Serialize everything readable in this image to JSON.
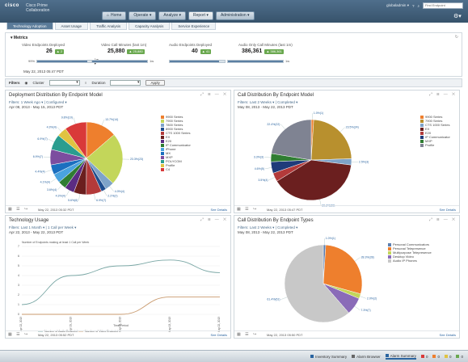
{
  "header": {
    "brand": "cisco",
    "product_line1": "Cisco Prime",
    "product_line2": "Collaboration",
    "nav": [
      {
        "label": "Home",
        "icon": "home-icon"
      },
      {
        "label": "Operate ▾"
      },
      {
        "label": "Analyze ▾"
      },
      {
        "label": "Report ▾",
        "active": true
      },
      {
        "label": "Administration ▾"
      }
    ],
    "user": "globaladmin ▾",
    "help": "?",
    "search_placeholder": "Find Endpoint"
  },
  "subtabs": [
    {
      "label": "Technology Adoption",
      "active": true
    },
    {
      "label": "Asset Usage"
    },
    {
      "label": "Traffic Analysis"
    },
    {
      "label": "Capacity Analysis"
    },
    {
      "label": "Service Experience"
    }
  ],
  "metrics": {
    "title": "Metrics",
    "date": "May 22, 2013 05:47 PDT",
    "items": [
      {
        "label": "Video Endpoints Deployed",
        "value": "26",
        "badge": "▲ 2",
        "pct": "99%",
        "fill": 0.92
      },
      {
        "label": "Video Call Minutes (last 1m)",
        "value": "25,880",
        "badge": "▲ 25,880",
        "pct": "1w",
        "fill": 1.0
      },
      {
        "label": "Audio Endpoints Deployed",
        "value": "40",
        "badge": "▲ 41",
        "pct": "1w",
        "fill": 0.9
      },
      {
        "label": "Audio Only Call Minutes (last 1m)",
        "value": "386,361",
        "badge": "▲ 386,361",
        "pct": "1w",
        "fill": 1.0
      }
    ]
  },
  "filters": {
    "title": "Filters",
    "cluster_label": "Cluster",
    "duration_label": "Duration",
    "apply": "Apply"
  },
  "panels": {
    "deployment": {
      "title": "Deployment Distribution By Endpoint Model",
      "filter": "Filters: 1 Week Ago ▾ | Configured ▾",
      "dates": "Apr 08, 2013 - May 15, 2013 PDT",
      "foot_date": "May 22, 2013 05:32 PDT",
      "see_details": "See Details"
    },
    "call": {
      "title": "Call Distribution By Endpoint Model",
      "filter": "Filters: Last 2 Weeks ▾ | Completed ▾",
      "dates": "May 08, 2013 - May 22, 2013 PDT",
      "foot_date": "May 22, 2013 05:47 PDT",
      "see_details": "See Details"
    },
    "usage": {
      "title": "Technology Usage",
      "filter": "Filters: Last 1 Month ▾ | 1 Call per Week ▾",
      "dates": "Apr 22, 2013 - May 22, 2013 PDT",
      "foot_date": "May 22, 2013 05:52 PDT",
      "see_details": "See Details"
    },
    "types": {
      "title": "Call Distribution By Endpoint Types",
      "filter": "Filters: Last 2 Weeks ▾ | Completed ▾",
      "dates": "May 08, 2013 - May 22, 2013 PDT",
      "foot_date": "May 22, 2013 05:50 PDT",
      "see_details": "See Details"
    }
  },
  "chart_data": [
    {
      "type": "pie",
      "title": "Deployment Distribution By Endpoint Model",
      "categories": [
        "9900 Series",
        "7900 Series",
        "7800 Series",
        "8900 Series",
        "CTS 1000 Series",
        "EX",
        "E20",
        "IP Communicator",
        "iPhone",
        "MX",
        "MXP",
        "POLYCOM",
        "Profile",
        "C4"
      ],
      "values": [
        13.7,
        23.3,
        4.0,
        2.2,
        6.9,
        5.6,
        4.3,
        3.6,
        4.1,
        4.4,
        6.9,
        6.9,
        4.3,
        9.8
      ],
      "colors": [
        "#ee7f2d",
        "#c3d65a",
        "#7ea3c9",
        "#1f4e8f",
        "#b33a3a",
        "#6b1f1f",
        "#5b2c83",
        "#2f7d32",
        "#4aa3df",
        "#1b6fbf",
        "#7c4d9f",
        "#2a9d8f",
        "#e0c341",
        "#d93939"
      ]
    },
    {
      "type": "pie",
      "title": "Call Distribution By Endpoint Model",
      "categories": [
        "9900 Series",
        "7900 Series",
        "CTS 1000 Series",
        "EX",
        "E20",
        "IP Communicator",
        "MXP",
        "Profile"
      ],
      "values": [
        1.0,
        23.5,
        2.5,
        39.2,
        3.5,
        4.6,
        3.3,
        22.4
      ],
      "colors": [
        "#ee7f2d",
        "#b8902e",
        "#7ea3c9",
        "#6b1f1f",
        "#b33a3a",
        "#1f3b7a",
        "#2f7d32",
        "#7f8392"
      ]
    },
    {
      "type": "line",
      "title": "Technology Usage",
      "ylabel": "Number of Endpoints making at least 1 Call per Week",
      "xlabel": "Time Period",
      "x": [
        "Apr 22, 2013",
        "Apr 29, 2013",
        "May 06, 2013",
        "May 13, 2013",
        "May 22, 2013"
      ],
      "ylim": [
        0,
        7
      ],
      "series": [
        {
          "name": "Number of Audio Endpoint",
          "color": "#7aa7a5",
          "values": [
            1,
            4,
            5,
            5.6,
            4.3
          ]
        },
        {
          "name": "Number of Video Endpoint",
          "color": "#c99a6e",
          "values": [
            0,
            0,
            0,
            1.8,
            1.8
          ]
        }
      ]
    },
    {
      "type": "pie",
      "title": "Call Distribution By Endpoint Types",
      "categories": [
        "Personal Communicators",
        "Personal Telepresence",
        "Multipurpose Telepresence",
        "Desktop Video",
        "Audio IP Phones"
      ],
      "values": [
        1.0,
        28.3,
        2.0,
        7.3,
        61.4
      ],
      "colors": [
        "#5c7fb0",
        "#ee7f2d",
        "#c3d65a",
        "#8a6bb8",
        "#c8c8c8"
      ]
    }
  ],
  "status_bar": [
    {
      "label": "Inventory Summary",
      "color": "#2a64a0"
    },
    {
      "label": "Alarm Browser",
      "color": "#666"
    },
    {
      "label": "Alarm Summary",
      "color": "#2a64a0",
      "active": true
    },
    {
      "label": "",
      "color": "#d93939"
    },
    {
      "label": "",
      "color": "#ee7f2d"
    },
    {
      "label": "",
      "color": "#e0c341"
    },
    {
      "label": "",
      "color": "#6aa84f"
    }
  ],
  "status_counts": [
    "0",
    "0",
    "0",
    "0"
  ]
}
